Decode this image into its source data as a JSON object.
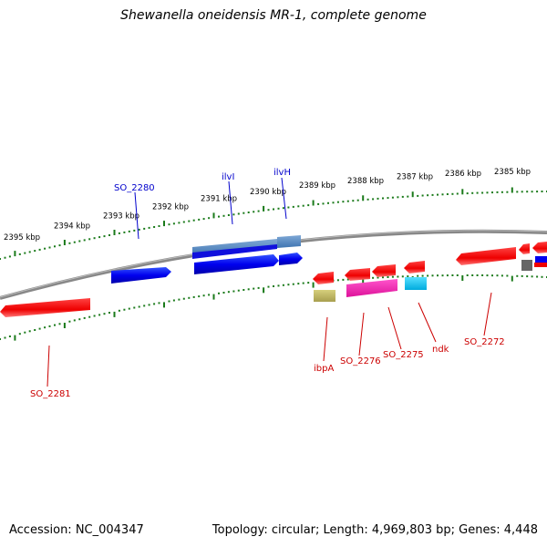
{
  "header": {
    "title": "Shewanella oneidensis MR-1, complete genome"
  },
  "footer": {
    "accession": "Accession: NC_004347",
    "summary": "Topology: circular; Length: 4,969,803 bp; Genes: 4,448"
  },
  "ruler": {
    "ticks": [
      "2395 kbp",
      "2394 kbp",
      "2393 kbp",
      "2392 kbp",
      "2391 kbp",
      "2390 kbp",
      "2389 kbp",
      "2388 kbp",
      "2387 kbp",
      "2386 kbp",
      "2385 kbp"
    ]
  },
  "genes": {
    "forward": [
      {
        "label": "SO_2280",
        "color": "#0000ee"
      },
      {
        "label": "ilvI",
        "color": "#0000ee"
      },
      {
        "label": "ilvH",
        "color": "#0000ee"
      }
    ],
    "reverse": [
      {
        "label": "SO_2281",
        "color": "#ee0000"
      },
      {
        "label": "ibpA",
        "color": "#cc0000"
      },
      {
        "label": "SO_2276",
        "color": "#cc0000"
      },
      {
        "label": "SO_2275",
        "color": "#cc0000"
      },
      {
        "label": "ndk",
        "color": "#cc0000"
      },
      {
        "label": "SO_2272",
        "color": "#cc0000"
      }
    ]
  },
  "colors": {
    "backbone": "#888888",
    "tick": "#1a7a1a",
    "forward_gene": "#0000ee",
    "reverse_gene": "#ee0000"
  }
}
